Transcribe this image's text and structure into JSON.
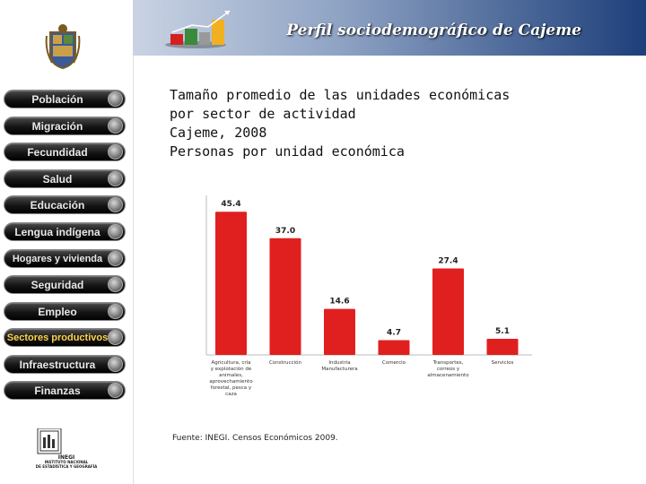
{
  "header": {
    "title": "Perfil sociodemográfico de Cajeme"
  },
  "nav": {
    "items": [
      {
        "label": "Población",
        "active": false
      },
      {
        "label": "Migración",
        "active": false
      },
      {
        "label": "Fecundidad",
        "active": false
      },
      {
        "label": "Salud",
        "active": false
      },
      {
        "label": "Educación",
        "active": false
      },
      {
        "label": "Lengua indígena",
        "active": false
      },
      {
        "label": "Hogares y vivienda",
        "active": false
      },
      {
        "label": "Seguridad",
        "active": false
      },
      {
        "label": "Empleo",
        "active": false
      },
      {
        "label": "Sectores productivos",
        "active": true
      },
      {
        "label": "Infraestructura",
        "active": false
      },
      {
        "label": "Finanzas",
        "active": false
      }
    ]
  },
  "logo": {
    "acronym": "INEGI",
    "name_line1": "INSTITUTO NACIONAL",
    "name_line2": "DE ESTADÍSTICA Y GEOGRAFÍA"
  },
  "chart_data": {
    "type": "bar",
    "title": "Tamaño promedio de las unidades económicas",
    "title_line2": "por sector de actividad",
    "subtitle": "Cajeme, 2008",
    "ylabel": "Personas por unidad económica",
    "categories": [
      "Agricultura, cría y explotación de animales, aprovechamiento forestal, pesca y caza",
      "Construcción",
      "Industria Manufacturera",
      "Comercio",
      "Transportes, correos y almacenamiento",
      "Servicios"
    ],
    "category_lines": [
      [
        "Agricultura, cría",
        "y explotación de",
        "animales,",
        "aprovechamiento",
        "forestal, pesca y",
        "caza"
      ],
      [
        "Construcción"
      ],
      [
        "Industria",
        "Manufacturera"
      ],
      [
        "Comercio"
      ],
      [
        "Transportes,",
        "correos y",
        "almacenamiento"
      ],
      [
        "Servicios"
      ]
    ],
    "values": [
      45.4,
      37.0,
      14.6,
      4.7,
      27.4,
      5.1
    ],
    "value_labels": [
      "45.4",
      "37.0",
      "14.6",
      "4.7",
      "27.4",
      "5.1"
    ],
    "ylim": [
      0,
      50
    ],
    "bar_color": "#e0201f",
    "grid": false,
    "legend": "none",
    "source": "Fuente: INEGI. Censos Económicos 2009."
  }
}
